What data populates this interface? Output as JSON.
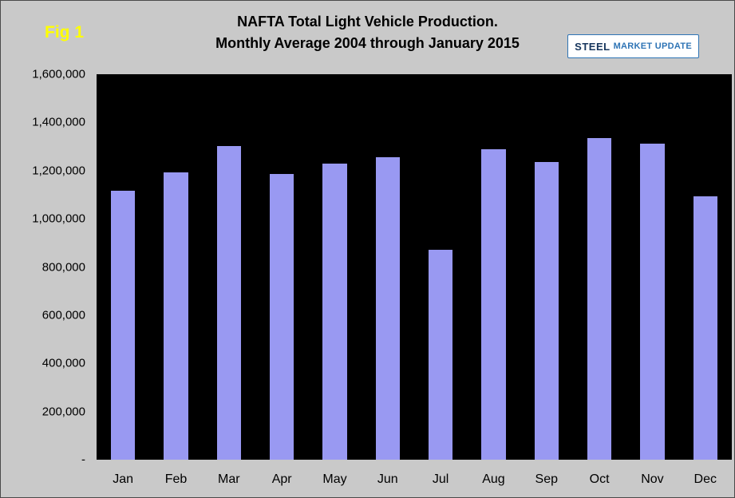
{
  "fig_label": "Fig 1",
  "title_line1": "NAFTA Total Light Vehicle Production.",
  "title_line2": "Monthly Average 2004 through January 2015",
  "logo": {
    "part1": "STEEL",
    "part2": "MARKET UPDATE"
  },
  "chart_data": {
    "type": "bar",
    "title": "NAFTA Total Light Vehicle Production. Monthly Average 2004 through January 2015",
    "categories": [
      "Jan",
      "Feb",
      "Mar",
      "Apr",
      "May",
      "Jun",
      "Jul",
      "Aug",
      "Sep",
      "Oct",
      "Nov",
      "Dec"
    ],
    "values": [
      1116000,
      1192000,
      1302000,
      1186000,
      1229000,
      1255000,
      871000,
      1288000,
      1235000,
      1334000,
      1311000,
      1093000
    ],
    "xlabel": "",
    "ylabel": "",
    "ylim": [
      0,
      1600000
    ],
    "ytick_step": 200000,
    "ytick_labels": [
      "-",
      "200,000",
      "400,000",
      "600,000",
      "800,000",
      "1,000,000",
      "1,200,000",
      "1,400,000",
      "1,600,000"
    ],
    "grid": false,
    "legend": false,
    "bar_color": "#9999f2",
    "plot_bg": "#000000",
    "outer_bg": "#c9c9c9"
  }
}
